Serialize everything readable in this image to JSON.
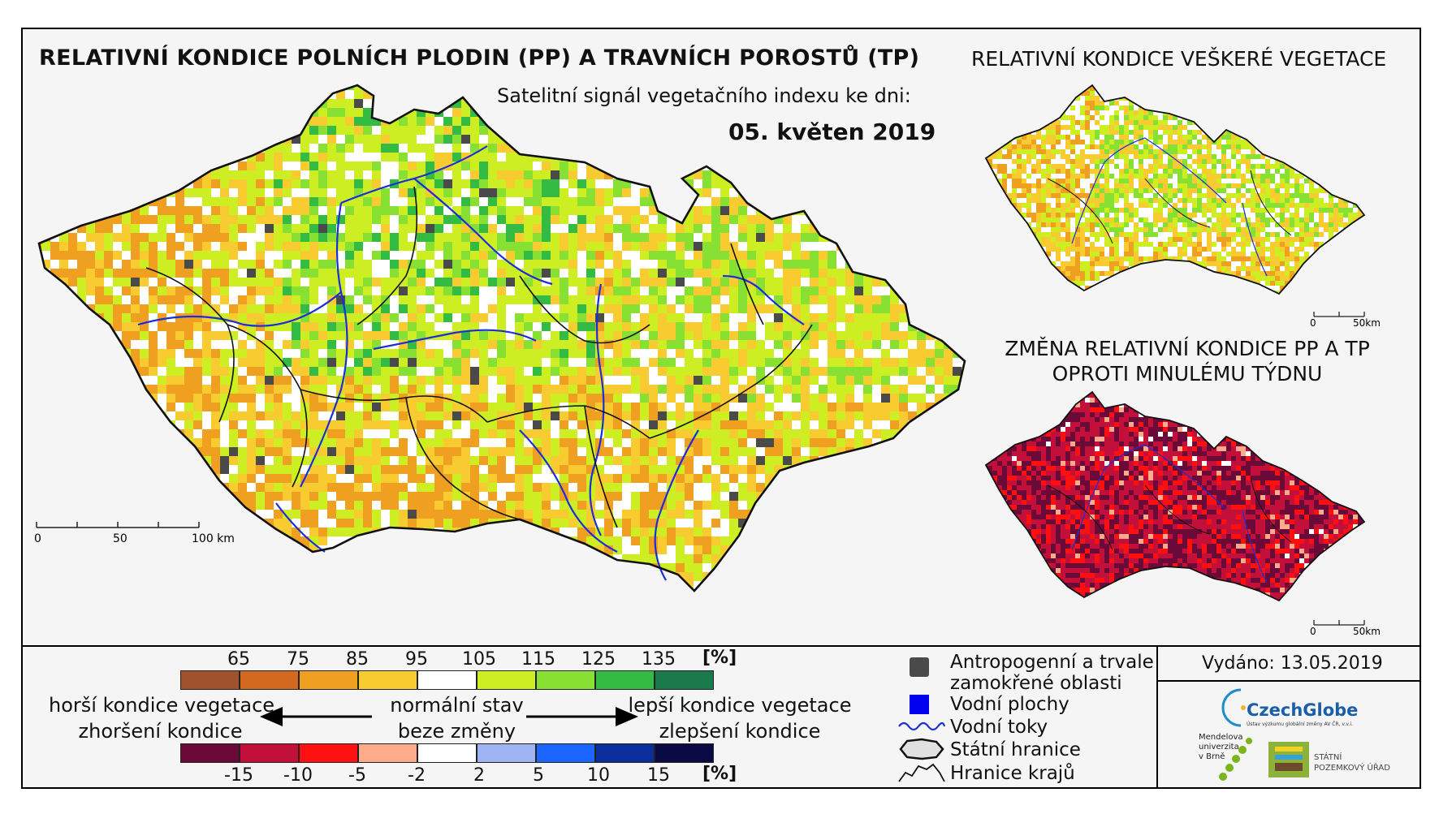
{
  "titles": {
    "main": "RELATIVNÍ KONDICE POLNÍCH PLODIN (PP) A TRAVNÍCH POROSTŮ (TP)",
    "subtitle": "Satelitní signál vegetačního indexu ke dni:",
    "date": "05. květen 2019",
    "right_top": "RELATIVNÍ KONDICE VEŠKERÉ VEGETACE",
    "right_bottom_line1": "ZMĚNA RELATIVNÍ KONDICE PP A TP",
    "right_bottom_line2": "OPROTI MINULÉMU TÝDNU"
  },
  "scalebars": {
    "main": {
      "labels": [
        "0",
        "50",
        "100 km"
      ]
    },
    "small": {
      "labels": [
        "0",
        "50km"
      ]
    }
  },
  "condition_scale": {
    "unit": "[%]",
    "ticks": [
      "65",
      "75",
      "85",
      "95",
      "105",
      "115",
      "125",
      "135"
    ],
    "colors": [
      "#a0522d",
      "#d2691e",
      "#efa020",
      "#f8cc30",
      "#ffffff",
      "#ccee22",
      "#88e033",
      "#33bb44",
      "#1a7a4c"
    ]
  },
  "change_scale": {
    "unit": "[%]",
    "ticks": [
      "-15",
      "-10",
      "-5",
      "-2",
      "2",
      "5",
      "10",
      "15"
    ],
    "colors": [
      "#6b0a38",
      "#c2103a",
      "#ff1010",
      "#ffaa8a",
      "#ffffff",
      "#9fb4f2",
      "#1a66ff",
      "#0a2f9a",
      "#0a0a45"
    ]
  },
  "descriptions": {
    "worse_line1": "horší kondice vegetace",
    "worse_line2": "zhoršení kondice",
    "normal_line1": "normální stav",
    "normal_line2": "beze změny",
    "better_line1": "lepší kondice vegetace",
    "better_line2": "zlepšení kondice"
  },
  "legend": {
    "anthropogenic_line1": "Antropogenní a trvale",
    "anthropogenic_line2": "zamokřené oblasti",
    "water_bodies": "Vodní plochy",
    "water_courses": "Vodní toky",
    "state_border": "Státní hranice",
    "region_border": "Hranice krajů"
  },
  "issued": "Vydáno: 13.05.2019",
  "logos": {
    "czechglobe": "CzechGlobe",
    "czechglobe_sub": "Ústav výzkumu globální změny AV ČR, v.v.i.",
    "mendel": [
      "Mendelova",
      "univerzita",
      "v Brně"
    ],
    "spu": [
      "STÁTNÍ",
      "POZEMKOVÝ ÚŘAD"
    ]
  },
  "colors": {
    "anthropogenic": "#4a4a4a",
    "water": "#0000ee",
    "river": "#1a2fd8"
  }
}
